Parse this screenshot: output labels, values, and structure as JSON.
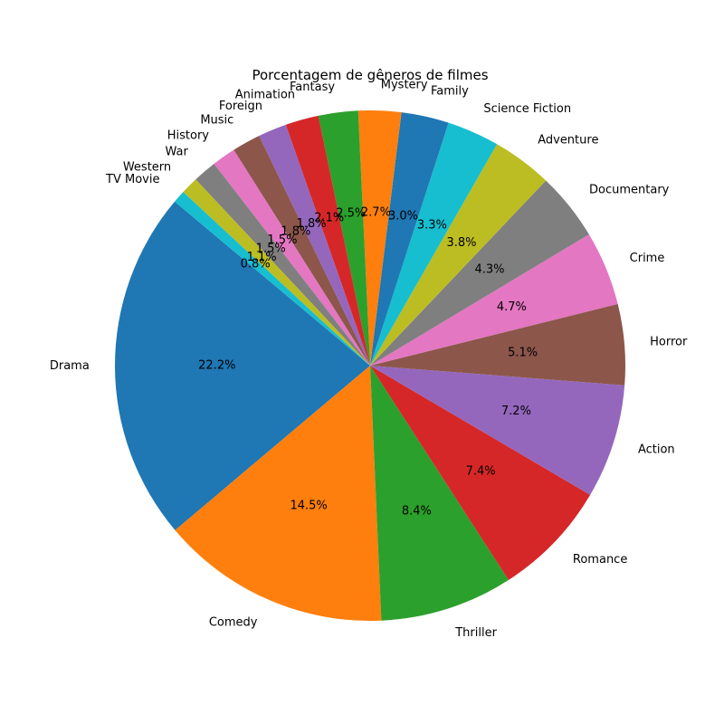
{
  "chart_data": {
    "type": "pie",
    "title": "Porcentagem de gêneros de filmes",
    "start_angle_deg": 140,
    "direction": "counterclockwise",
    "categories": [
      "Drama",
      "Comedy",
      "Thriller",
      "Romance",
      "Action",
      "Horror",
      "Crime",
      "Documentary",
      "Adventure",
      "Science Fiction",
      "Family",
      "Mystery",
      "Fantasy",
      "Animation",
      "Foreign",
      "Music",
      "History",
      "War",
      "Western",
      "TV Movie"
    ],
    "values": [
      22.2,
      14.5,
      8.4,
      7.4,
      7.2,
      5.1,
      4.7,
      4.3,
      3.8,
      3.3,
      3.0,
      2.7,
      2.5,
      2.1,
      1.8,
      1.8,
      1.5,
      1.5,
      1.1,
      0.8
    ],
    "value_labels": [
      "22.2%",
      "14.5%",
      "8.4%",
      "7.4%",
      "7.2%",
      "5.1%",
      "4.7%",
      "4.3%",
      "3.8%",
      "3.3%",
      "3.0%",
      "2.7%",
      "2.5%",
      "2.1%",
      "1.8%",
      "1.8%",
      "1.5%",
      "1.5%",
      "1.1%",
      "0.8%"
    ],
    "colors": [
      "#1f77b4",
      "#ff7f0e",
      "#2ca02c",
      "#d62728",
      "#9467bd",
      "#8c564b",
      "#e377c2",
      "#7f7f7f",
      "#bcbd22",
      "#17becf",
      "#1f77b4",
      "#ff7f0e",
      "#2ca02c",
      "#d62728",
      "#9467bd",
      "#8c564b",
      "#e377c2",
      "#7f7f7f",
      "#bcbd22",
      "#17becf"
    ]
  }
}
